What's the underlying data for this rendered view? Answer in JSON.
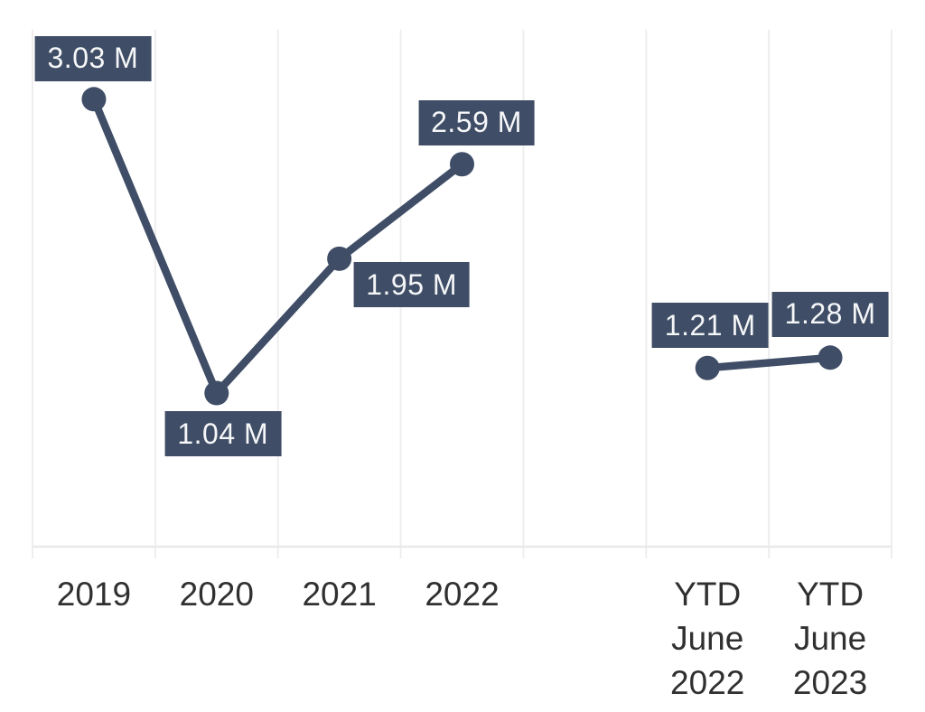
{
  "chart_data": {
    "type": "line",
    "title": "",
    "xlabel": "",
    "ylabel": "",
    "unit": "M",
    "categories": [
      "2019",
      "2020",
      "2021",
      "2022",
      "",
      "YTD\nJune\n2022",
      "YTD\nJune\n2023"
    ],
    "values": [
      3.03,
      1.04,
      1.95,
      2.59,
      null,
      1.21,
      1.28
    ],
    "data_labels": [
      "3.03 M",
      "1.04 M",
      "1.95 M",
      "2.59 M",
      null,
      "1.21 M",
      "1.28 M"
    ],
    "ylim": [
      0,
      3.5
    ],
    "grid": "vertical-only",
    "legend": "none",
    "gap_after_index": 3,
    "label_offsets": [
      [
        -1,
        -45
      ],
      [
        7,
        45
      ],
      [
        80,
        29
      ],
      [
        16,
        -46
      ],
      null,
      [
        3,
        -47
      ],
      [
        0,
        -48
      ]
    ]
  },
  "style": {
    "series_color": "#3f4d66",
    "data_label_bg": "#3f4d66",
    "data_label_text": "#f5f6f8",
    "gridline_color": "#eeeeee",
    "axis_line_color": "#e9e9e9",
    "axis_text_color": "#303030",
    "background": "#ffffff"
  }
}
